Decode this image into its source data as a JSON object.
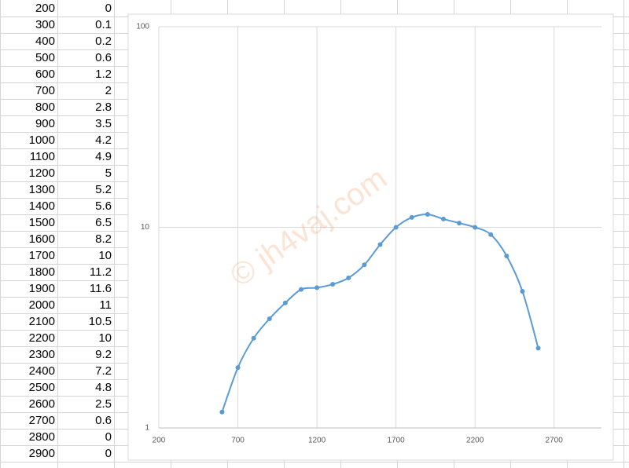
{
  "table": {
    "rows": [
      [
        200,
        0
      ],
      [
        300,
        0.1
      ],
      [
        400,
        0.2
      ],
      [
        500,
        0.6
      ],
      [
        600,
        1.2
      ],
      [
        700,
        2
      ],
      [
        800,
        2.8
      ],
      [
        900,
        3.5
      ],
      [
        1000,
        4.2
      ],
      [
        1100,
        4.9
      ],
      [
        1200,
        5
      ],
      [
        1300,
        5.2
      ],
      [
        1400,
        5.6
      ],
      [
        1500,
        6.5
      ],
      [
        1600,
        8.2
      ],
      [
        1700,
        10
      ],
      [
        1800,
        11.2
      ],
      [
        1900,
        11.6
      ],
      [
        2000,
        11
      ],
      [
        2100,
        10.5
      ],
      [
        2200,
        10
      ],
      [
        2300,
        9.2
      ],
      [
        2400,
        7.2
      ],
      [
        2500,
        4.8
      ],
      [
        2600,
        2.5
      ],
      [
        2700,
        0.6
      ],
      [
        2800,
        0
      ],
      [
        2900,
        0
      ]
    ]
  },
  "chart_data": {
    "type": "line",
    "smooth": true,
    "markers": true,
    "log_y": true,
    "grid": true,
    "x": [
      600,
      700,
      800,
      900,
      1000,
      1100,
      1200,
      1300,
      1400,
      1500,
      1600,
      1700,
      1800,
      1900,
      2000,
      2100,
      2200,
      2300,
      2400,
      2500,
      2600
    ],
    "series": [
      {
        "color": "#5b9bd5",
        "values": [
          1.2,
          2,
          2.8,
          3.5,
          4.2,
          4.9,
          5,
          5.2,
          5.6,
          6.5,
          8.2,
          10,
          11.2,
          11.6,
          11,
          10.5,
          10,
          9.2,
          7.2,
          4.8,
          2.5
        ]
      }
    ],
    "xlim": [
      200,
      3000
    ],
    "xticks": [
      200,
      700,
      1200,
      1700,
      2200,
      2700
    ],
    "ylim": [
      1,
      100
    ],
    "yticks": [
      1,
      10,
      100
    ]
  },
  "watermark": "© jh4vaj.com"
}
